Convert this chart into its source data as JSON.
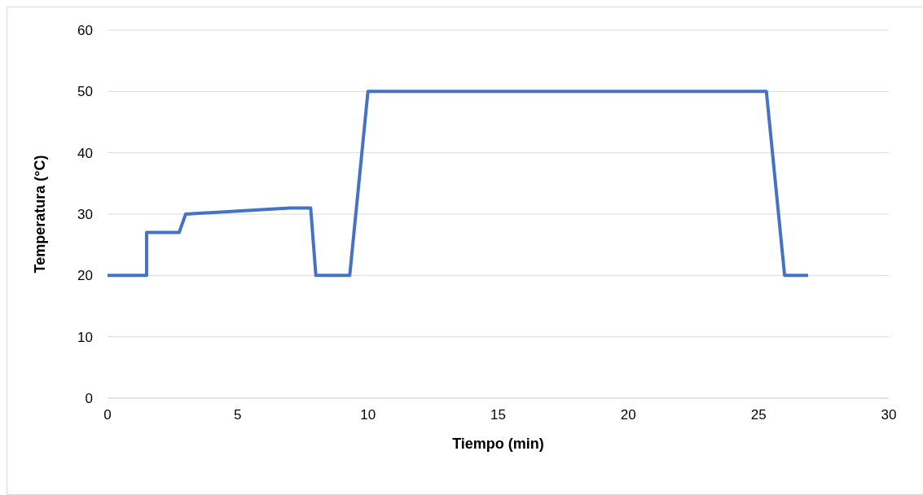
{
  "chart_data": {
    "type": "line",
    "xlabel": "Tiempo (min)",
    "ylabel": "Temperatura (°C)",
    "x": [
      0,
      1.5,
      1.5,
      2.75,
      3,
      7,
      7.8,
      8,
      9.3,
      10,
      25.3,
      26,
      26.9
    ],
    "series": [
      {
        "color": "#4472c4",
        "values": [
          20,
          20,
          27,
          27,
          30,
          31,
          31,
          20,
          20,
          50,
          50,
          20,
          20
        ]
      }
    ],
    "xlim": [
      0,
      30
    ],
    "xticks": [
      0,
      5,
      10,
      15,
      20,
      25,
      30
    ],
    "ylim": [
      0,
      60
    ],
    "yticks": [
      0,
      10,
      20,
      30,
      40,
      50,
      60
    ],
    "grid": "y",
    "marker": "none",
    "line_style": "solid"
  }
}
